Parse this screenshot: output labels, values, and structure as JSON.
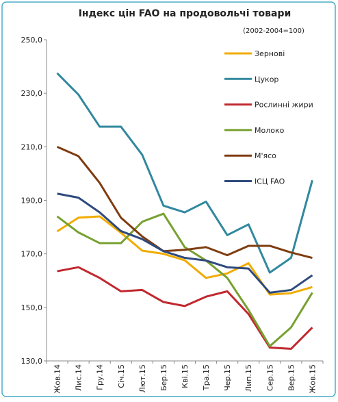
{
  "chart_data": {
    "type": "line",
    "title": "Індекс цін FAO на продовольчі товари",
    "subtitle": "(2002-2004=100)",
    "categories": [
      "Жов.14",
      "Лис.14",
      "Гру.14",
      "Січ.15",
      "Лют.15",
      "Бер.15",
      "Кві.15",
      "Тра.15",
      "Чер.15",
      "Лип.15",
      "Сер.15",
      "Вер.15",
      "Жов.15"
    ],
    "series": [
      {
        "name": "Зернові",
        "color": "#f0ac00",
        "values": [
          178.4,
          183.5,
          184,
          177.9,
          171.2,
          170,
          167.6,
          161,
          162.7,
          166.5,
          154.8,
          155.3,
          157.6
        ]
      },
      {
        "name": "Цукор",
        "color": "#31889e",
        "values": [
          237.5,
          229.5,
          217.5,
          217.5,
          207,
          188,
          185.5,
          189.5,
          177,
          181,
          163,
          168.5,
          197.5
        ]
      },
      {
        "name": "Рослинні жири",
        "color": "#c0282e",
        "values": [
          163.5,
          165,
          161,
          156,
          156.5,
          152,
          150.5,
          154,
          156,
          147.5,
          135,
          134.5,
          142.5
        ]
      },
      {
        "name": "Молоко",
        "color": "#77a030",
        "values": [
          184,
          178,
          174,
          174,
          182,
          185,
          172.5,
          167.5,
          161,
          149,
          135.5,
          142.5,
          155.5
        ]
      },
      {
        "name": "М'ясо",
        "color": "#7f3c10",
        "values": [
          210,
          206.5,
          196.5,
          183.5,
          176.5,
          171,
          171.5,
          172.5,
          169.5,
          173,
          173,
          170.5,
          168.5
        ]
      },
      {
        "name": "ІСЦ FAO",
        "color": "#2e4a7d",
        "values": [
          192.5,
          191,
          185.5,
          178.5,
          175.5,
          171,
          168.5,
          167.5,
          165,
          164.5,
          155.5,
          156.5,
          162
        ]
      }
    ],
    "ylim": [
      130,
      250
    ],
    "yticks": [
      {
        "value": 130,
        "label": "130,0"
      },
      {
        "value": 150,
        "label": "150,0"
      },
      {
        "value": 170,
        "label": "170,0"
      },
      {
        "value": 190,
        "label": "190,0"
      },
      {
        "value": 210,
        "label": "210,0"
      },
      {
        "value": 230,
        "label": "230,0"
      },
      {
        "value": 250,
        "label": "250,0"
      }
    ],
    "grid": false
  }
}
